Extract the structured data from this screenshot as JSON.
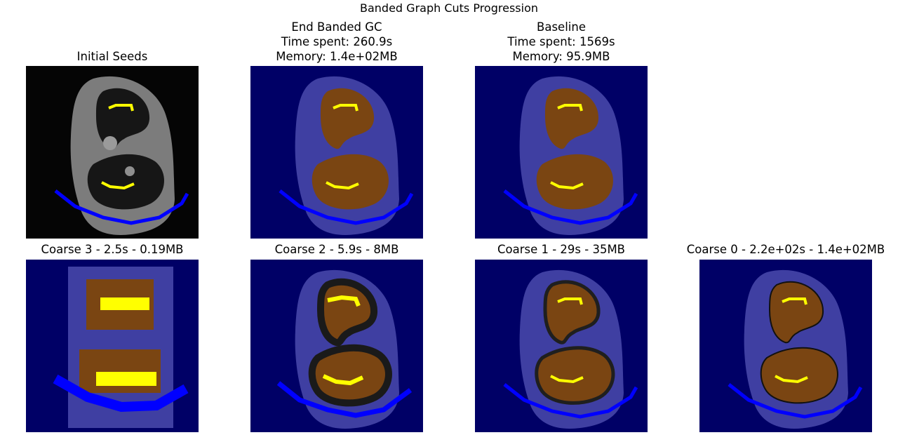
{
  "figure": {
    "suptitle": "Banded Graph Cuts Progression"
  },
  "panels": [
    {
      "id": "initial",
      "title_lines": [
        "Initial Seeds"
      ],
      "overlay": "none",
      "style": "seeds"
    },
    {
      "id": "end-banded",
      "title_lines": [
        "End Banded GC",
        "Time spent: 260.9s",
        "Memory: 1.4e+02MB"
      ],
      "overlay": "segmentation",
      "style": "fine"
    },
    {
      "id": "baseline",
      "title_lines": [
        "Baseline",
        "Time spent: 1569s",
        "Memory: 95.9MB"
      ],
      "overlay": "segmentation",
      "style": "fine"
    },
    {
      "id": "coarse-3",
      "title_lines": [
        "Coarse 3 - 2.5s - 0.19MB"
      ],
      "overlay": "segmentation",
      "style": "pixel-coarse"
    },
    {
      "id": "coarse-2",
      "title_lines": [
        "Coarse 2 - 5.9s - 8MB"
      ],
      "overlay": "segmentation",
      "style": "banded-wide"
    },
    {
      "id": "coarse-1",
      "title_lines": [
        "Coarse 1 - 29s - 35MB"
      ],
      "overlay": "segmentation",
      "style": "banded-narrow"
    },
    {
      "id": "coarse-0",
      "title_lines": [
        "Coarse 0 - 2.2e+02s - 1.4e+02MB"
      ],
      "overlay": "segmentation",
      "style": "outlined"
    }
  ],
  "colors": {
    "background_label": "#000066",
    "foreground_label": "#7a4512",
    "seed_foreground": "#ffff00",
    "seed_background": "#0000ff"
  }
}
